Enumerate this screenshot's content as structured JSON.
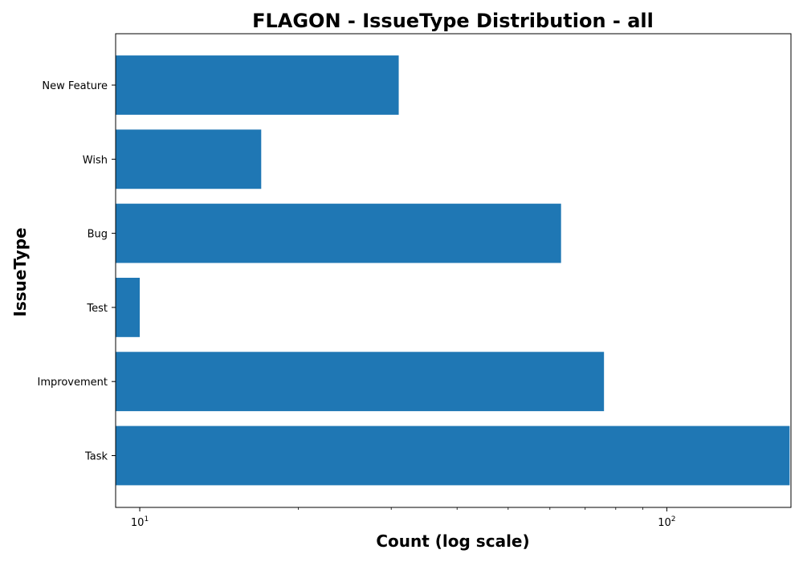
{
  "chart_data": {
    "type": "bar",
    "orientation": "horizontal",
    "title": "FLAGON - IssueType Distribution - all",
    "xlabel": "Count (log scale)",
    "ylabel": "IssueType",
    "x_scale": "log",
    "xlim": [
      9,
      172
    ],
    "x_ticks": [
      {
        "value": 10,
        "base": "10",
        "exp": "1"
      },
      {
        "value": 100,
        "base": "10",
        "exp": "2"
      }
    ],
    "categories": [
      "New Feature",
      "Wish",
      "Bug",
      "Test",
      "Improvement",
      "Task"
    ],
    "values": [
      31,
      17,
      63,
      10,
      76,
      171
    ],
    "bar_color": "#1f77b4",
    "grid": false,
    "legend": "none"
  }
}
